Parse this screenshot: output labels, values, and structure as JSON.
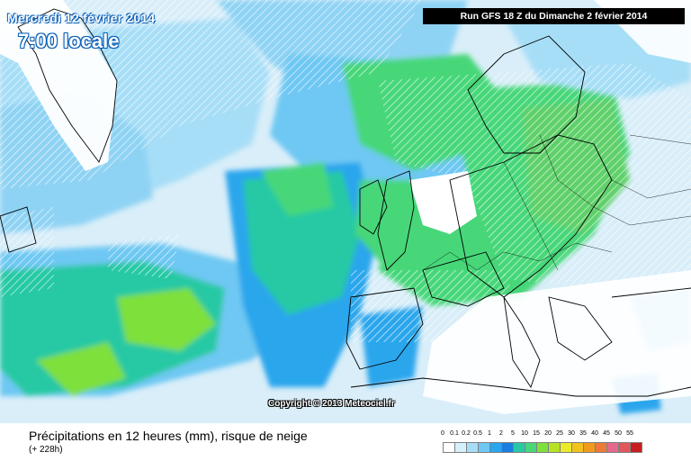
{
  "header": {
    "date_label": "Mercredi 12 février 2014",
    "hour_label": "7:00 locale",
    "run_label": "Run GFS 18 Z du Dimanche 2 février 2014"
  },
  "map": {
    "copyright": "Copyright © 2013 Meteociel.fr",
    "base_color": "#eef6fb",
    "land_outline_color": "#000000",
    "snow_hatch_color": "#ffffff"
  },
  "caption": {
    "title": "Précipitations en 12 heures (mm), risque de neige",
    "forecast_offset": "(+ 228h)"
  },
  "legend": {
    "ticks": [
      "0",
      "0.1",
      "0.2",
      "0.5",
      "1",
      "2",
      "5",
      "10",
      "15",
      "20",
      "25",
      "30",
      "35",
      "40",
      "45",
      "50",
      "55"
    ],
    "colors": [
      "#ffffff",
      "#d6f0fb",
      "#a7def7",
      "#6ec8f3",
      "#2aa6ec",
      "#1a7fe0",
      "#27c9a4",
      "#47d779",
      "#7ee03a",
      "#b7e326",
      "#eaeb2a",
      "#f2c21d",
      "#f29a1d",
      "#ec7b3a",
      "#e5698b",
      "#e0585b",
      "#c81e1e"
    ]
  }
}
